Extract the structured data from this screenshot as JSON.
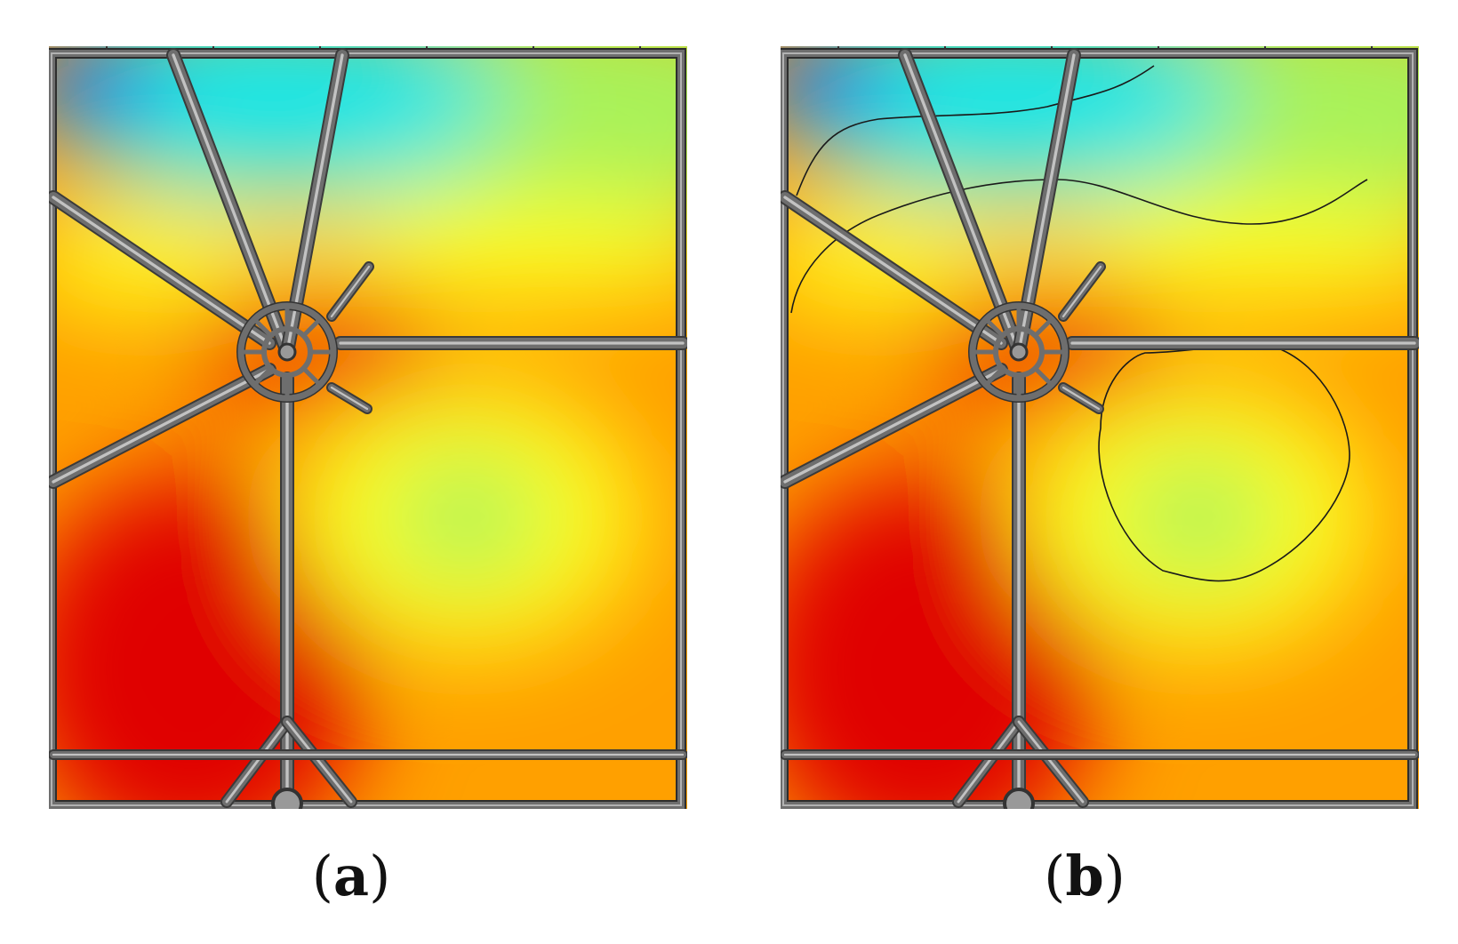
{
  "figure": {
    "panels": [
      {
        "id": "a",
        "caption_open": "(",
        "caption_letter": "a",
        "caption_close": ")",
        "shows_contour_lines": false
      },
      {
        "id": "b",
        "caption_open": "(",
        "caption_letter": "b",
        "caption_close": ")",
        "shows_contour_lines": true
      }
    ],
    "colormap": {
      "low": "#1e5cff",
      "cyan": "#1ee6e6",
      "green": "#a8f25a",
      "yellow": "#ffff1a",
      "orange": "#ffa000",
      "high": "#e00000"
    },
    "frame_color": "#6e6e6e",
    "contour_color": "#1a1a1a"
  }
}
